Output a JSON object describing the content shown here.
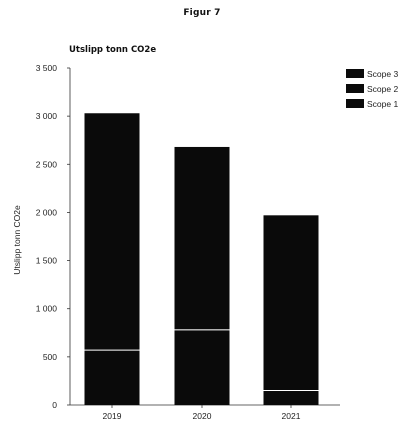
{
  "figure_title": "Figur 7",
  "chart_data": {
    "type": "bar",
    "stacked": true,
    "title": "Utslipp tonn CO2e",
    "xlabel": "",
    "ylabel": "Utslipp tonn CO2e",
    "categories": [
      "2019",
      "2020",
      "2021"
    ],
    "ylim": [
      0,
      3500
    ],
    "yticks": [
      0,
      500,
      1000,
      1500,
      2000,
      2500,
      3000,
      3500
    ],
    "ytick_labels": [
      "0",
      "500",
      "1 000",
      "1 500",
      "2 000",
      "2 500",
      "3 000",
      "3 500"
    ],
    "series": [
      {
        "name": "Scope 1",
        "values": [
          570,
          780,
          150
        ],
        "color": "#0a0a0a"
      },
      {
        "name": "Scope 2",
        "values": [
          5,
          5,
          5
        ],
        "color": "#0a0a0a"
      },
      {
        "name": "Scope 3",
        "values": [
          2455,
          1895,
          1815
        ],
        "color": "#0a0a0a"
      }
    ],
    "legend": {
      "position": "top-right",
      "entries": [
        "Scope 3",
        "Scope 2",
        "Scope 1"
      ]
    },
    "grid": false
  }
}
